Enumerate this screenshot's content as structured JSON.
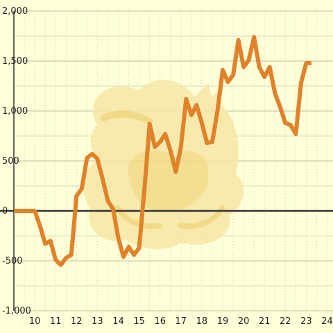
{
  "chart_data": {
    "type": "line",
    "x_ticks": [
      "10",
      "11",
      "12",
      "13",
      "14",
      "15",
      "16",
      "17",
      "18",
      "19",
      "20",
      "21",
      "22",
      "23",
      "24"
    ],
    "y_ticks": [
      "2,000",
      "1,500",
      "1,000",
      "500",
      "0",
      "-500",
      "-1,000"
    ],
    "xlim": [
      9,
      24.3
    ],
    "ylim": [
      -1000,
      2000
    ],
    "grid": true,
    "series": [
      {
        "color": "#E0822A",
        "x": [
          9,
          9.25,
          9.5,
          9.75,
          10,
          10.25,
          10.5,
          10.75,
          11,
          11.25,
          11.5,
          11.75,
          12,
          12.25,
          12.5,
          12.75,
          13,
          13.25,
          13.5,
          13.75,
          14,
          14.25,
          14.5,
          14.75,
          15,
          15.25,
          15.5,
          15.75,
          16,
          16.25,
          16.5,
          16.75,
          17,
          17.25,
          17.5,
          17.75,
          18,
          18.25,
          18.5,
          18.75,
          19,
          19.25,
          19.5,
          19.75,
          20,
          20.25,
          20.5,
          20.75,
          21,
          21.25,
          21.5,
          21.75,
          22,
          22.25,
          22.5,
          22.75,
          23,
          23.25
        ],
        "y": [
          0,
          0,
          0,
          0,
          0,
          -150,
          -330,
          -300,
          -490,
          -540,
          -470,
          -440,
          150,
          220,
          530,
          570,
          520,
          320,
          100,
          20,
          -270,
          -460,
          -360,
          -440,
          -370,
          210,
          870,
          640,
          690,
          770,
          600,
          390,
          640,
          1120,
          960,
          1060,
          880,
          680,
          690,
          1000,
          1410,
          1290,
          1360,
          1710,
          1440,
          1510,
          1740,
          1440,
          1340,
          1440,
          1180,
          1040,
          880,
          860,
          770,
          1280,
          1480,
          1480
        ]
      }
    ]
  },
  "watermark": {
    "icon": "cat-mascot-watermark",
    "colors": [
      "#F5E3A0",
      "#EFD37A"
    ]
  }
}
